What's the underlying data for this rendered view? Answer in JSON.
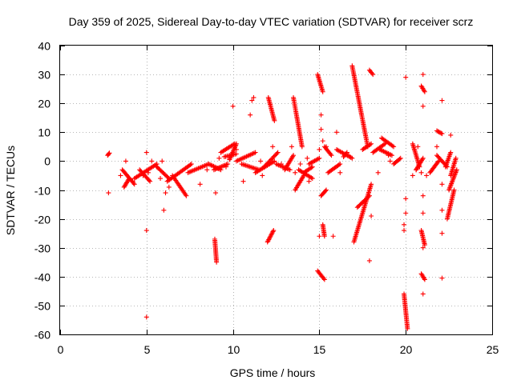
{
  "chart_data": {
    "type": "scatter",
    "title": "Day 359 of 2025, Sidereal Day-to-day VTEC variation (SDTVAR) for receiver scrz",
    "xlabel": "GPS time / hours",
    "ylabel": "SDTVAR / TECUs",
    "xlim": [
      0,
      25
    ],
    "ylim": [
      -60,
      40
    ],
    "x_ticks": [
      0,
      5,
      10,
      15,
      20,
      25
    ],
    "y_ticks": [
      -60,
      -50,
      -40,
      -30,
      -20,
      -10,
      0,
      10,
      20,
      30,
      40
    ],
    "grid": true,
    "marker": "+",
    "color": "#ff0000",
    "segments": [
      {
        "x": [
          2.75,
          2.85
        ],
        "y": [
          2.0,
          2.8
        ]
      },
      {
        "x": [
          3.6,
          4.3
        ],
        "y": [
          -3.0,
          -8.0
        ]
      },
      {
        "x": [
          3.7,
          4.0
        ],
        "y": [
          -9.0,
          -6.0
        ]
      },
      {
        "x": [
          4.3,
          5.6
        ],
        "y": [
          -6.0,
          -1.0
        ]
      },
      {
        "x": [
          4.6,
          5.2
        ],
        "y": [
          -3.0,
          -7.0
        ]
      },
      {
        "x": [
          5.6,
          6.3
        ],
        "y": [
          -2.0,
          -6.0
        ]
      },
      {
        "x": [
          6.2,
          7.6
        ],
        "y": [
          -7.0,
          -1.0
        ]
      },
      {
        "x": [
          6.5,
          7.3
        ],
        "y": [
          -5.0,
          -12.0
        ]
      },
      {
        "x": [
          7.4,
          8.6
        ],
        "y": [
          -4.0,
          -1.0
        ]
      },
      {
        "x": [
          8.6,
          9.3
        ],
        "y": [
          -1.0,
          -3.0
        ]
      },
      {
        "x": [
          8.9,
          9.7
        ],
        "y": [
          -3.0,
          -1.0
        ]
      },
      {
        "x": [
          8.95,
          9.05
        ],
        "y": [
          -27.0,
          -35.0
        ]
      },
      {
        "x": [
          9.3,
          10.1
        ],
        "y": [
          3.0,
          6.0
        ]
      },
      {
        "x": [
          9.5,
          10.2
        ],
        "y": [
          1.5,
          2.5
        ]
      },
      {
        "x": [
          9.8,
          10.2
        ],
        "y": [
          0.5,
          6.0
        ]
      },
      {
        "x": [
          10.2,
          11.3
        ],
        "y": [
          0.0,
          3.0
        ]
      },
      {
        "x": [
          10.5,
          11.5
        ],
        "y": [
          -1.0,
          -3.0
        ]
      },
      {
        "x": [
          11.3,
          12.4
        ],
        "y": [
          -4.0,
          0.0
        ]
      },
      {
        "x": [
          11.8,
          12.6
        ],
        "y": [
          -2.0,
          3.0
        ]
      },
      {
        "x": [
          12.0,
          12.35
        ],
        "y": [
          -28.0,
          -24.0
        ]
      },
      {
        "x": [
          12.05,
          12.4
        ],
        "y": [
          22.0,
          14.0
        ]
      },
      {
        "x": [
          12.5,
          13.3
        ],
        "y": [
          -1.0,
          -3.0
        ]
      },
      {
        "x": [
          13.0,
          13.5
        ],
        "y": [
          -3.0,
          2.0
        ]
      },
      {
        "x": [
          13.5,
          14.0
        ],
        "y": [
          22.0,
          5.0
        ]
      },
      {
        "x": [
          13.6,
          14.1
        ],
        "y": [
          -10.0,
          -5.0
        ]
      },
      {
        "x": [
          13.8,
          14.6
        ],
        "y": [
          -3.0,
          -6.0
        ]
      },
      {
        "x": [
          14.1,
          14.6
        ],
        "y": [
          -4.0,
          -2.0
        ]
      },
      {
        "x": [
          14.4,
          15.0
        ],
        "y": [
          -1.0,
          1.0
        ]
      },
      {
        "x": [
          14.9,
          15.2
        ],
        "y": [
          30.0,
          24.0
        ]
      },
      {
        "x": [
          14.9,
          15.3
        ],
        "y": [
          -38.0,
          -41.0
        ]
      },
      {
        "x": [
          15.1,
          15.4
        ],
        "y": [
          -12.0,
          -10.0
        ]
      },
      {
        "x": [
          15.2,
          15.3
        ],
        "y": [
          -22.0,
          -26.0
        ]
      },
      {
        "x": [
          15.3,
          15.7
        ],
        "y": [
          5.0,
          2.0
        ]
      },
      {
        "x": [
          15.5,
          16.2
        ],
        "y": [
          -4.0,
          -1.0
        ]
      },
      {
        "x": [
          16.0,
          16.9
        ],
        "y": [
          4.0,
          1.0
        ]
      },
      {
        "x": [
          16.4,
          16.6
        ],
        "y": [
          1.5,
          3.0
        ]
      },
      {
        "x": [
          16.9,
          17.8
        ],
        "y": [
          33.0,
          5.0
        ]
      },
      {
        "x": [
          17.0,
          18.0
        ],
        "y": [
          -28.0,
          -8.0
        ]
      },
      {
        "x": [
          17.2,
          17.9
        ],
        "y": [
          -16.0,
          -12.0
        ]
      },
      {
        "x": [
          17.5,
          18.0
        ],
        "y": [
          4.0,
          6.0
        ]
      },
      {
        "x": [
          17.9,
          18.1
        ],
        "y": [
          31.5,
          30.0
        ]
      },
      {
        "x": [
          18.1,
          18.8
        ],
        "y": [
          3.0,
          6.0
        ]
      },
      {
        "x": [
          18.5,
          19.2
        ],
        "y": [
          4.0,
          2.0
        ]
      },
      {
        "x": [
          18.6,
          19.3
        ],
        "y": [
          8.0,
          5.0
        ]
      },
      {
        "x": [
          19.3,
          19.7
        ],
        "y": [
          -1.0,
          1.0
        ]
      },
      {
        "x": [
          19.9,
          20.1
        ],
        "y": [
          -46.0,
          -58.0
        ]
      },
      {
        "x": [
          20.4,
          20.8
        ],
        "y": [
          6.0,
          -2.0
        ]
      },
      {
        "x": [
          20.6,
          21.0
        ],
        "y": [
          -3.0,
          1.0
        ]
      },
      {
        "x": [
          20.9,
          21.1
        ],
        "y": [
          26.0,
          24.0
        ]
      },
      {
        "x": [
          20.9,
          21.1
        ],
        "y": [
          -24.0,
          -29.0
        ]
      },
      {
        "x": [
          20.9,
          21.1
        ],
        "y": [
          -39.0,
          -41.0
        ]
      },
      {
        "x": [
          21.4,
          21.9
        ],
        "y": [
          -4.0,
          0.0
        ]
      },
      {
        "x": [
          21.8,
          22.1
        ],
        "y": [
          10.5,
          9.5
        ]
      },
      {
        "x": [
          21.8,
          22.4
        ],
        "y": [
          2.0,
          -2.0
        ]
      },
      {
        "x": [
          22.3,
          22.6
        ],
        "y": [
          -2.0,
          3.0
        ]
      },
      {
        "x": [
          22.4,
          22.8
        ],
        "y": [
          -20.0,
          -10.0
        ]
      },
      {
        "x": [
          22.5,
          22.95
        ],
        "y": [
          -10.0,
          -3.0
        ]
      },
      {
        "x": [
          22.6,
          22.9
        ],
        "y": [
          -5.0,
          1.0
        ]
      }
    ],
    "points": [
      [
        2.8,
        -11
      ],
      [
        3.5,
        -5
      ],
      [
        3.8,
        0
      ],
      [
        4.2,
        -7
      ],
      [
        4.8,
        -5
      ],
      [
        5.0,
        3
      ],
      [
        5.0,
        -24
      ],
      [
        5.0,
        -54
      ],
      [
        5.1,
        -4
      ],
      [
        5.3,
        0
      ],
      [
        5.6,
        -2
      ],
      [
        5.8,
        -6
      ],
      [
        5.9,
        0
      ],
      [
        6.0,
        -17
      ],
      [
        6.1,
        -11
      ],
      [
        6.3,
        -9
      ],
      [
        8.1,
        -8
      ],
      [
        8.5,
        -3
      ],
      [
        9.0,
        -11
      ],
      [
        9.2,
        1
      ],
      [
        9.6,
        -2
      ],
      [
        10.0,
        19
      ],
      [
        10.2,
        4
      ],
      [
        10.6,
        -7
      ],
      [
        11.0,
        16
      ],
      [
        11.1,
        21
      ],
      [
        11.2,
        22
      ],
      [
        11.6,
        0
      ],
      [
        11.7,
        -5
      ],
      [
        12.3,
        5
      ],
      [
        13.4,
        5
      ],
      [
        13.6,
        -4
      ],
      [
        13.9,
        -1
      ],
      [
        14.3,
        1
      ],
      [
        14.4,
        -7
      ],
      [
        15.0,
        -26
      ],
      [
        15.0,
        4
      ],
      [
        15.1,
        11
      ],
      [
        15.1,
        16
      ],
      [
        15.2,
        7
      ],
      [
        15.4,
        5
      ],
      [
        15.8,
        -26
      ],
      [
        16.0,
        10
      ],
      [
        16.2,
        -4
      ],
      [
        17.9,
        -34.5
      ],
      [
        18.0,
        -19
      ],
      [
        18.4,
        -4
      ],
      [
        19.0,
        2
      ],
      [
        19.9,
        -22
      ],
      [
        19.9,
        -24
      ],
      [
        20.0,
        -13
      ],
      [
        20.0,
        -18
      ],
      [
        20.0,
        29
      ],
      [
        20.4,
        -5
      ],
      [
        20.6,
        -3
      ],
      [
        20.9,
        -4
      ],
      [
        21.0,
        30
      ],
      [
        21.0,
        19
      ],
      [
        21.0,
        -12
      ],
      [
        21.0,
        -18
      ],
      [
        21.0,
        -30
      ],
      [
        21.0,
        -46
      ],
      [
        21.8,
        5
      ],
      [
        22.1,
        21
      ],
      [
        22.1,
        -8
      ],
      [
        22.1,
        -17
      ],
      [
        22.1,
        -25
      ],
      [
        22.1,
        -40.5
      ],
      [
        22.6,
        9
      ],
      [
        21.2,
        -5
      ],
      [
        20.7,
        5
      ],
      [
        16.7,
        2
      ],
      [
        19.1,
        0
      ],
      [
        12.8,
        -1
      ]
    ]
  }
}
